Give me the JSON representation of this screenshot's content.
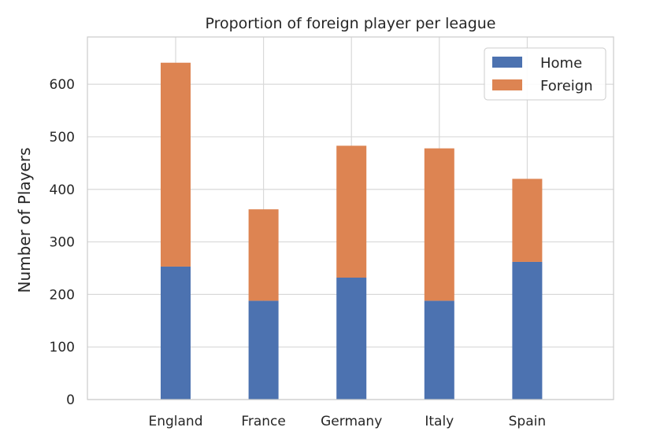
{
  "chart_data": {
    "type": "bar",
    "stacked": true,
    "title": "Proportion of foreign player per league",
    "xlabel": "",
    "ylabel": "Number of Players",
    "categories": [
      "England",
      "France",
      "Germany",
      "Italy",
      "Spain"
    ],
    "series": [
      {
        "name": "Home",
        "color": "#4c72b0",
        "values": [
          253,
          188,
          232,
          188,
          262
        ]
      },
      {
        "name": "Foreign",
        "color": "#dd8452",
        "values": [
          388,
          174,
          251,
          290,
          158
        ]
      }
    ],
    "yticks": [
      0,
      100,
      200,
      300,
      400,
      500,
      600
    ],
    "ylim": [
      0,
      690
    ],
    "grid": true,
    "legend_position": "top-right"
  }
}
